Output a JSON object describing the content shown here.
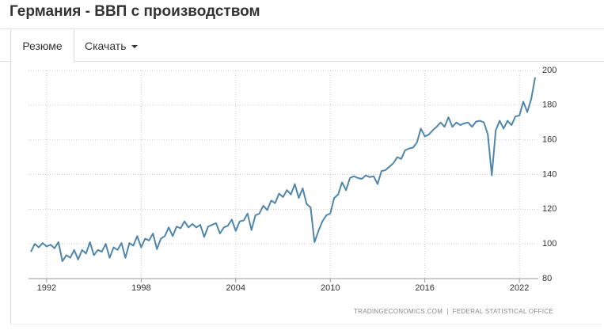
{
  "header": {
    "title": "Германия - ВВП с производством"
  },
  "tabs": [
    "Резюме",
    "Скачать"
  ],
  "chart_data": {
    "type": "line",
    "x": [
      1991.0,
      1991.25,
      1991.5,
      1991.75,
      1992.0,
      1992.25,
      1992.5,
      1992.75,
      1993.0,
      1993.25,
      1993.5,
      1993.75,
      1994.0,
      1994.25,
      1994.5,
      1994.75,
      1995.0,
      1995.25,
      1995.5,
      1995.75,
      1996.0,
      1996.25,
      1996.5,
      1996.75,
      1997.0,
      1997.25,
      1997.5,
      1997.75,
      1998.0,
      1998.25,
      1998.5,
      1998.75,
      1999.0,
      1999.25,
      1999.5,
      1999.75,
      2000.0,
      2000.25,
      2000.5,
      2000.75,
      2001.0,
      2001.25,
      2001.5,
      2001.75,
      2002.0,
      2002.25,
      2002.5,
      2002.75,
      2003.0,
      2003.25,
      2003.5,
      2003.75,
      2004.0,
      2004.25,
      2004.5,
      2004.75,
      2005.0,
      2005.25,
      2005.5,
      2005.75,
      2006.0,
      2006.25,
      2006.5,
      2006.75,
      2007.0,
      2007.25,
      2007.5,
      2007.75,
      2008.0,
      2008.25,
      2008.5,
      2008.75,
      2009.0,
      2009.25,
      2009.5,
      2009.75,
      2010.0,
      2010.25,
      2010.5,
      2010.75,
      2011.0,
      2011.25,
      2011.5,
      2011.75,
      2012.0,
      2012.25,
      2012.5,
      2012.75,
      2013.0,
      2013.25,
      2013.5,
      2013.75,
      2014.0,
      2014.25,
      2014.5,
      2014.75,
      2015.0,
      2015.25,
      2015.5,
      2015.75,
      2016.0,
      2016.25,
      2016.5,
      2016.75,
      2017.0,
      2017.25,
      2017.5,
      2017.75,
      2018.0,
      2018.25,
      2018.5,
      2018.75,
      2019.0,
      2019.25,
      2019.5,
      2019.75,
      2020.0,
      2020.25,
      2020.5,
      2020.75,
      2021.0,
      2021.25,
      2021.5,
      2021.75,
      2022.0,
      2022.25,
      2022.5,
      2022.75,
      2023.0
    ],
    "series": [
      {
        "name": "ВВП с производством",
        "color": "#4f86aa",
        "values": [
          95.5,
          100,
          98,
          100.5,
          98.5,
          99.5,
          97.5,
          101,
          90,
          93.5,
          92,
          96.5,
          91,
          96.5,
          94.5,
          101,
          93.5,
          96.5,
          95.5,
          100,
          92,
          98,
          96.5,
          100.5,
          92,
          100.5,
          99,
          104.5,
          98,
          103,
          102,
          106,
          97,
          103,
          104.5,
          109.5,
          104.5,
          110,
          109,
          113,
          109.5,
          111.5,
          109.5,
          111,
          104,
          110,
          111,
          112,
          106,
          109.5,
          110.5,
          114,
          107.5,
          113,
          113.5,
          117.5,
          108,
          116.5,
          117.5,
          122,
          119.5,
          125,
          123.5,
          129,
          127,
          131,
          128.5,
          134.5,
          126.5,
          132,
          123,
          121,
          101,
          107.5,
          113,
          116.5,
          117.5,
          126.5,
          128.5,
          135.5,
          131,
          138,
          139,
          138,
          137.5,
          139.5,
          138.5,
          139,
          134.5,
          142,
          142.5,
          144.5,
          146.5,
          150,
          149,
          154,
          155,
          155.5,
          158.5,
          166.5,
          162,
          163,
          165.5,
          167.5,
          170,
          167.5,
          173,
          167.5,
          170,
          168.5,
          169.5,
          170,
          167.5,
          170.5,
          171,
          170,
          163,
          139.5,
          165.5,
          171,
          166.5,
          171,
          168.5,
          173.5,
          174,
          182,
          176,
          183.5,
          196
        ]
      }
    ],
    "xlim": [
      1990.85,
      2023.2
    ],
    "xticks": [
      1992,
      1998,
      2004,
      2010,
      2016,
      2022
    ],
    "ylim": [
      80,
      200
    ],
    "yticks": [
      80,
      100,
      120,
      140,
      160,
      180,
      200
    ],
    "grid": true,
    "source": "TRADINGECONOMICS.COM  |  FEDERAL STATISTICAL OFFICE"
  }
}
